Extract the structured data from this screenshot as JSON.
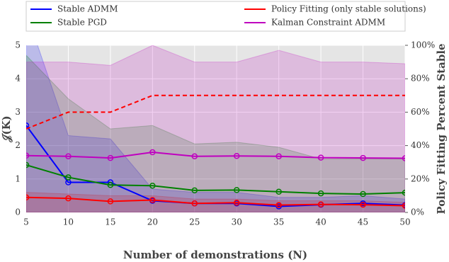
{
  "chart_data": {
    "type": "line",
    "x_label": "Number of demonstrations (N)",
    "y_label": "𝒥(K)",
    "y2_label": "Policy Fitting Percent Stable",
    "x": [
      5,
      10,
      15,
      20,
      25,
      30,
      35,
      40,
      45,
      50
    ],
    "xlim": [
      5,
      50
    ],
    "xticks": [
      5,
      10,
      15,
      20,
      25,
      30,
      35,
      40,
      45,
      50
    ],
    "ylim": [
      0,
      5
    ],
    "yticks": [
      0,
      1,
      2,
      3,
      4,
      5
    ],
    "y2lim": [
      0,
      100
    ],
    "y2ticks": [
      {
        "value": 0,
        "label": "0%"
      },
      {
        "value": 20,
        "label": "20%"
      },
      {
        "value": 40,
        "label": "40%"
      },
      {
        "value": 60,
        "label": "60%"
      },
      {
        "value": 80,
        "label": "80%"
      },
      {
        "value": 100,
        "label": "100%"
      }
    ],
    "grid": true,
    "legend": "top",
    "series": [
      {
        "name": "Stable ADMM",
        "color": "#0000ff",
        "markers": true,
        "values": [
          2.6,
          0.9,
          0.9,
          0.35,
          0.27,
          0.27,
          0.18,
          0.23,
          0.27,
          0.22
        ],
        "band_upper": [
          6.0,
          2.3,
          2.2,
          0.7,
          0.6,
          0.6,
          0.45,
          0.45,
          0.5,
          0.4
        ]
      },
      {
        "name": "Policy Fitting (only stable solutions)",
        "color": "#ff0000",
        "markers": true,
        "values": [
          0.45,
          0.42,
          0.33,
          0.37,
          0.27,
          0.29,
          0.22,
          0.24,
          0.23,
          0.2
        ],
        "band_upper": [
          0.6,
          0.55,
          0.5,
          0.5,
          0.4,
          0.4,
          0.35,
          0.35,
          0.35,
          0.3
        ]
      },
      {
        "name": "Stable PGD",
        "color": "#008000",
        "markers": true,
        "values": [
          1.42,
          1.05,
          0.82,
          0.8,
          0.66,
          0.67,
          0.62,
          0.57,
          0.55,
          0.59
        ],
        "band_upper": [
          4.7,
          3.4,
          2.5,
          2.6,
          2.05,
          2.1,
          1.95,
          1.6,
          1.6,
          1.6
        ]
      },
      {
        "name": "Kalman Constraint ADMM",
        "color": "#bf00bf",
        "markers": true,
        "values": [
          1.7,
          1.68,
          1.63,
          1.8,
          1.68,
          1.69,
          1.68,
          1.64,
          1.63,
          1.62
        ],
        "band_upper": [
          4.5,
          4.5,
          4.4,
          5.0,
          4.5,
          4.5,
          4.85,
          4.5,
          4.5,
          4.45
        ]
      },
      {
        "color": "#ff0000",
        "axis": "y2",
        "dashed": true,
        "values": [
          50,
          60,
          60,
          70,
          70,
          70,
          70,
          70,
          70,
          70
        ]
      }
    ]
  }
}
